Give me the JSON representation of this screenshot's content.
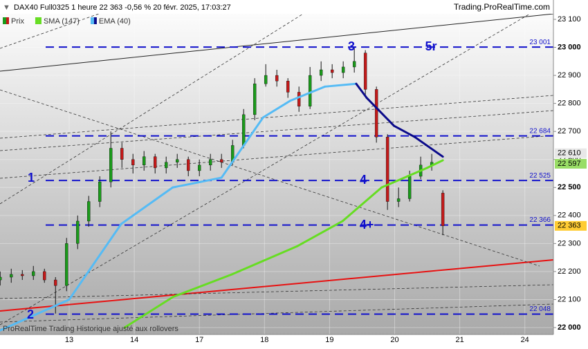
{
  "chart_data": {
    "type": "candlestick",
    "title": "DAX40 Full0325 1 heure 22 363 -0,56 % 20 févr. 2025, 17:03:27",
    "source": "Trading.ProRealTime.com",
    "footer": "ProRealTime Trading Historique ajusté aux rollovers",
    "xticks": [
      {
        "value": 0,
        "label": "13"
      },
      {
        "value": 1,
        "label": "14"
      },
      {
        "value": 2,
        "label": "17"
      },
      {
        "value": 3,
        "label": "18"
      },
      {
        "value": 4,
        "label": "19"
      },
      {
        "value": 5,
        "label": "20"
      },
      {
        "value": 6,
        "label": "21"
      },
      {
        "value": 7,
        "label": "24"
      }
    ],
    "ylim": [
      22000,
      23100
    ],
    "yticks": [
      {
        "value": 23100,
        "label": "23 100"
      },
      {
        "value": 23000,
        "label": "23 000"
      },
      {
        "value": 22900,
        "label": "22 900"
      },
      {
        "value": 22800,
        "label": "22 800"
      },
      {
        "value": 22700,
        "label": "22 700"
      },
      {
        "value": 22600,
        "label": "22 600"
      },
      {
        "value": 22500,
        "label": "22 500"
      },
      {
        "value": 22400,
        "label": "22 400"
      },
      {
        "value": 22300,
        "label": "22 300"
      },
      {
        "value": 22200,
        "label": "22 200"
      },
      {
        "value": 22100,
        "label": "22 100"
      },
      {
        "value": 22000,
        "label": "22 000"
      }
    ],
    "grid": true,
    "candles": {
      "name": "Prix",
      "up_color": "#1a9a1a",
      "down_color": "#c41a1a",
      "last_label": "22 363",
      "x": [
        -1.06,
        -0.89,
        -0.72,
        -0.55,
        -0.38,
        -0.21,
        -0.04,
        0.13,
        0.3,
        0.47,
        0.64,
        0.81,
        0.98,
        1.15,
        1.32,
        1.49,
        1.66,
        1.83,
        2.0,
        2.17,
        2.34,
        2.51,
        2.68,
        2.85,
        3.02,
        3.19,
        3.36,
        3.53,
        3.7,
        3.87,
        4.04,
        4.21,
        4.38,
        4.55,
        4.72,
        4.89,
        5.06,
        5.23,
        5.4,
        5.57,
        5.74
      ],
      "open": [
        22170,
        22180,
        22190,
        22185,
        22200,
        22170,
        22150,
        22300,
        22380,
        22450,
        22520,
        22640,
        22600,
        22580,
        22610,
        22570,
        22590,
        22600,
        22560,
        22580,
        22600,
        22590,
        22650,
        22760,
        22870,
        22900,
        22880,
        22840,
        22790,
        22900,
        22920,
        22910,
        22930,
        22980,
        22850,
        22680,
        22450,
        22460,
        22540,
        22580,
        22480
      ],
      "high": [
        22200,
        22210,
        22205,
        22220,
        22210,
        22180,
        22320,
        22400,
        22470,
        22540,
        22700,
        22660,
        22620,
        22630,
        22620,
        22610,
        22620,
        22610,
        22600,
        22620,
        22620,
        22670,
        22780,
        22890,
        22940,
        22920,
        22890,
        22860,
        22930,
        22950,
        22940,
        22950,
        23000,
        22990,
        22860,
        22690,
        22500,
        22560,
        22610,
        22620,
        22490
      ],
      "low": [
        22150,
        22160,
        22170,
        22170,
        22160,
        22050,
        22130,
        22280,
        22360,
        22430,
        22500,
        22570,
        22550,
        22560,
        22550,
        22550,
        22570,
        22540,
        22540,
        22560,
        22570,
        22580,
        22640,
        22740,
        22860,
        22860,
        22820,
        22770,
        22780,
        22880,
        22890,
        22890,
        22910,
        22830,
        22660,
        22420,
        22430,
        22450,
        22530,
        22560,
        22330
      ],
      "close": [
        22180,
        22190,
        22185,
        22200,
        22170,
        22150,
        22300,
        22380,
        22450,
        22520,
        22640,
        22600,
        22580,
        22610,
        22570,
        22590,
        22600,
        22560,
        22580,
        22600,
        22590,
        22650,
        22760,
        22870,
        22900,
        22880,
        22840,
        22790,
        22900,
        22920,
        22910,
        22930,
        22950,
        22850,
        22680,
        22450,
        22460,
        22540,
        22580,
        22590,
        22363
      ]
    },
    "series": [
      {
        "name": "SMA (147)",
        "color": "#66dd22",
        "last_label": "22 597",
        "x": [
          0.85,
          1.6,
          2.5,
          3.5,
          4.2,
          4.8,
          5.2,
          5.5,
          5.74
        ],
        "values": [
          22000,
          22110,
          22190,
          22290,
          22380,
          22500,
          22540,
          22570,
          22597
        ]
      },
      {
        "name": "EMA (40)",
        "color": "#55bbf5",
        "falling_color": "#0a0a8a",
        "last_label": "22 610",
        "x": [
          -1.06,
          0,
          0.8,
          1.59,
          2.02,
          2.34,
          2.98,
          3.4,
          3.93,
          4.41,
          4.57,
          4.99,
          5.31,
          5.74
        ],
        "values": [
          21990,
          22100,
          22370,
          22500,
          22520,
          22535,
          22750,
          22810,
          22860,
          22870,
          22820,
          22720,
          22680,
          22610
        ]
      }
    ],
    "levels": [
      {
        "value": 23001,
        "label": "23 001"
      },
      {
        "value": 22684,
        "label": "22 684"
      },
      {
        "value": 22525,
        "label": "22 525"
      },
      {
        "value": 22366,
        "label": "22 366"
      },
      {
        "value": 22048,
        "label": "22 048"
      }
    ],
    "level_color": "#1010cc",
    "annotations": [
      "3",
      "5r",
      "1",
      "4",
      "4+",
      "2"
    ]
  }
}
